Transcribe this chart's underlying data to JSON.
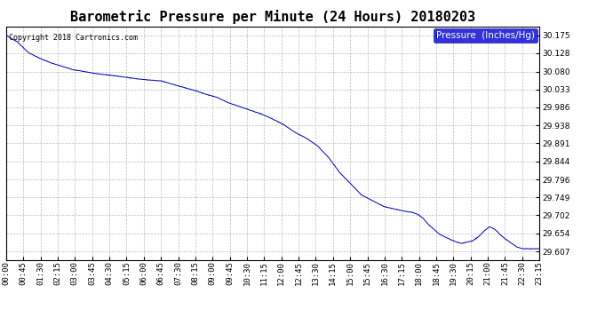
{
  "title": "Barometric Pressure per Minute (24 Hours) 20180203",
  "copyright": "Copyright 2018 Cartronics.com",
  "legend_label": "Pressure  (Inches/Hg)",
  "line_color": "#0000BB",
  "background_color": "#ffffff",
  "grid_color": "#bbbbbb",
  "yticks": [
    29.607,
    29.654,
    29.702,
    29.749,
    29.796,
    29.844,
    29.891,
    29.938,
    29.986,
    30.033,
    30.08,
    30.128,
    30.175
  ],
  "ylim": [
    29.585,
    30.198
  ],
  "xtick_labels": [
    "00:00",
    "00:45",
    "01:30",
    "02:15",
    "03:00",
    "03:45",
    "04:30",
    "05:15",
    "06:00",
    "06:45",
    "07:30",
    "08:15",
    "09:00",
    "09:45",
    "10:30",
    "11:15",
    "12:00",
    "12:45",
    "13:30",
    "14:15",
    "15:00",
    "15:45",
    "16:30",
    "17:15",
    "18:00",
    "18:45",
    "19:30",
    "20:15",
    "21:00",
    "21:45",
    "22:30",
    "23:15"
  ],
  "title_fontsize": 11,
  "tick_fontsize": 6.5,
  "copyright_fontsize": 6.0,
  "legend_fontsize": 7.5,
  "key_times": [
    0,
    30,
    60,
    90,
    120,
    180,
    240,
    300,
    360,
    420,
    480,
    510,
    540,
    570,
    600,
    630,
    660,
    690,
    720,
    750,
    780,
    810,
    840,
    855,
    870,
    885,
    900,
    960,
    1020,
    1050,
    1065,
    1080,
    1095,
    1110,
    1125,
    1140,
    1155,
    1170,
    1200,
    1215,
    1230,
    1260,
    1275,
    1290,
    1305,
    1320,
    1335,
    1350,
    1365,
    1380,
    1395
  ],
  "key_pressures": [
    30.175,
    30.158,
    30.13,
    30.115,
    30.103,
    30.085,
    30.075,
    30.068,
    30.06,
    30.055,
    30.038,
    30.03,
    30.02,
    30.012,
    29.998,
    29.988,
    29.978,
    29.968,
    29.955,
    29.94,
    29.92,
    29.905,
    29.885,
    29.87,
    29.855,
    29.835,
    29.815,
    29.755,
    29.725,
    29.718,
    29.715,
    29.712,
    29.71,
    29.705,
    29.695,
    29.678,
    29.665,
    29.652,
    29.638,
    29.632,
    29.628,
    29.635,
    29.645,
    29.66,
    29.672,
    29.665,
    29.65,
    29.638,
    29.628,
    29.618,
    29.614
  ]
}
